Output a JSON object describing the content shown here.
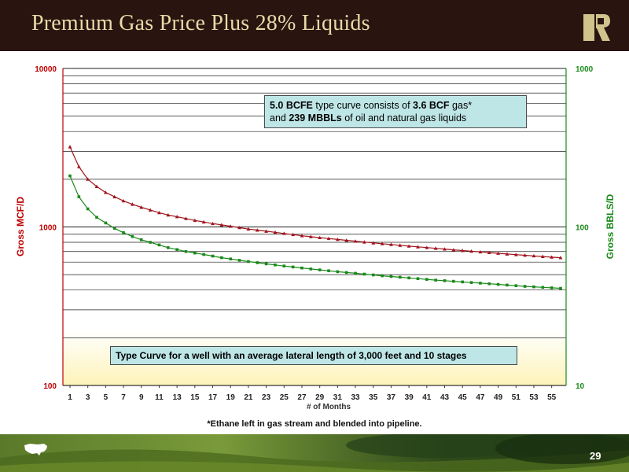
{
  "slide": {
    "title": "Premium Gas Price Plus 28% Liquids",
    "page_number": "29",
    "footnote": "*Ethane left in gas stream and blended into pipeline.",
    "colors": {
      "header_bg": "#2a1410",
      "title_text": "#e6dca8",
      "gas_series": "#a0141e",
      "liquids_series": "#1a8a1a",
      "callout_bg": "#bfe6e6"
    }
  },
  "callouts": {
    "top": {
      "bold1": "5.0 BCFE",
      "text1": " type curve consists of ",
      "bold2": "3.6 BCF",
      "text2": " gas*",
      "text3": "and ",
      "bold3": "239 MBBLs",
      "text4": " of oil and natural gas liquids"
    },
    "bottom": "Type Curve for a well with an average lateral length of 3,000 feet and 10 stages"
  },
  "chart_data": {
    "type": "line",
    "xlabel": "# of Months",
    "ylabel_left": "Gross MCF/D",
    "ylabel_right": "Gross BBLS/D",
    "y_scale": "log",
    "ylim_left": [
      100,
      10000
    ],
    "ylim_right": [
      10,
      1000
    ],
    "yticks_left": [
      "100",
      "1000",
      "10000"
    ],
    "yticks_right": [
      "10",
      "100",
      "1000"
    ],
    "xlim": [
      1,
      56
    ],
    "xticks": [
      1,
      3,
      5,
      7,
      9,
      11,
      13,
      15,
      17,
      19,
      21,
      23,
      25,
      27,
      29,
      31,
      33,
      35,
      37,
      39,
      41,
      43,
      45,
      47,
      49,
      51,
      53,
      55
    ],
    "grid": true,
    "series": [
      {
        "axis": "left",
        "color": "#a0141e",
        "marker": "triangle",
        "x": [
          1,
          2,
          3,
          4,
          5,
          6,
          7,
          8,
          9,
          10,
          11,
          12,
          13,
          14,
          15,
          16,
          17,
          18,
          19,
          20,
          21,
          22,
          23,
          24,
          25,
          26,
          27,
          28,
          29,
          30,
          31,
          32,
          33,
          34,
          35,
          36,
          37,
          38,
          39,
          40,
          41,
          42,
          43,
          44,
          45,
          46,
          47,
          48,
          49,
          50,
          51,
          52,
          53,
          54,
          55,
          56
        ],
        "values": [
          3200,
          2400,
          2000,
          1800,
          1650,
          1550,
          1460,
          1390,
          1330,
          1280,
          1230,
          1190,
          1160,
          1130,
          1100,
          1075,
          1050,
          1030,
          1010,
          990,
          970,
          955,
          940,
          925,
          910,
          895,
          880,
          868,
          856,
          845,
          834,
          823,
          813,
          803,
          793,
          784,
          775,
          766,
          757,
          749,
          741,
          733,
          725,
          717,
          710,
          703,
          696,
          689,
          682,
          675,
          669,
          663,
          657,
          651,
          645,
          640
        ]
      },
      {
        "axis": "right",
        "color": "#1a8a1a",
        "marker": "square",
        "x": [
          1,
          2,
          3,
          4,
          5,
          6,
          7,
          8,
          9,
          10,
          11,
          12,
          13,
          14,
          15,
          16,
          17,
          18,
          19,
          20,
          21,
          22,
          23,
          24,
          25,
          26,
          27,
          28,
          29,
          30,
          31,
          32,
          33,
          34,
          35,
          36,
          37,
          38,
          39,
          40,
          41,
          42,
          43,
          44,
          45,
          46,
          47,
          48,
          49,
          50,
          51,
          52,
          53,
          54,
          55,
          56
        ],
        "values": [
          210,
          155,
          130,
          115,
          106,
          98,
          92,
          87,
          83,
          80,
          77,
          74,
          72,
          70,
          68.5,
          67,
          65.5,
          64,
          62.8,
          61.6,
          60.5,
          59.5,
          58.5,
          57.6,
          56.7,
          55.9,
          55.1,
          54.3,
          53.6,
          52.9,
          52.2,
          51.6,
          51,
          50.4,
          49.8,
          49.2,
          48.7,
          48.2,
          47.7,
          47.2,
          46.7,
          46.2,
          45.8,
          45.4,
          45,
          44.6,
          44.2,
          43.8,
          43.4,
          43,
          42.6,
          42.2,
          41.9,
          41.6,
          41.3,
          41
        ]
      }
    ]
  }
}
